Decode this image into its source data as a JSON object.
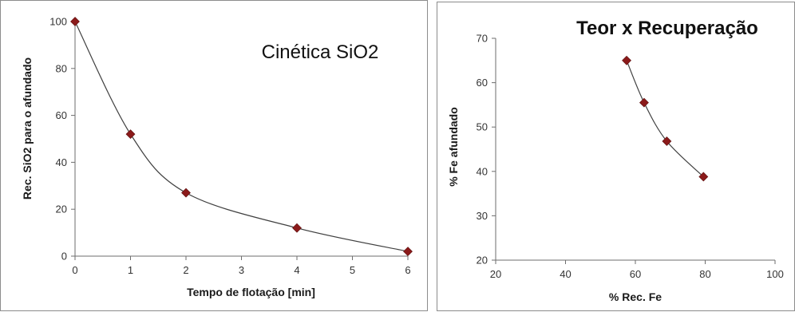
{
  "chart_data": [
    {
      "type": "scatter",
      "title": "Cinética SiO2",
      "xlabel": "Tempo de flotação [min]",
      "ylabel": "Rec. SiO2 para o afundado",
      "xlim": [
        0,
        6
      ],
      "ylim": [
        0,
        100
      ],
      "xticks": [
        0,
        1,
        2,
        3,
        4,
        5,
        6
      ],
      "yticks": [
        0,
        20,
        40,
        60,
        80,
        100
      ],
      "x": [
        0,
        1,
        2,
        4,
        6
      ],
      "y": [
        100,
        52,
        27,
        12,
        2
      ],
      "grid": false,
      "smooth_line": true,
      "marker": "diamond",
      "marker_color": "#8b1a1a",
      "line_color": "#404040"
    },
    {
      "type": "scatter",
      "title": "Teor x Recuperação",
      "xlabel": "% Rec. Fe",
      "ylabel": "% Fe afundado",
      "xlim": [
        20,
        100
      ],
      "ylim": [
        20,
        70
      ],
      "xticks": [
        20,
        40,
        60,
        80,
        100
      ],
      "yticks": [
        20,
        30,
        40,
        50,
        60,
        70
      ],
      "x": [
        57.5,
        62.5,
        69,
        79.5
      ],
      "y": [
        65,
        55.5,
        46.8,
        38.8
      ],
      "grid": false,
      "smooth_line": true,
      "marker": "diamond",
      "marker_color": "#8b1a1a",
      "line_color": "#404040"
    }
  ]
}
